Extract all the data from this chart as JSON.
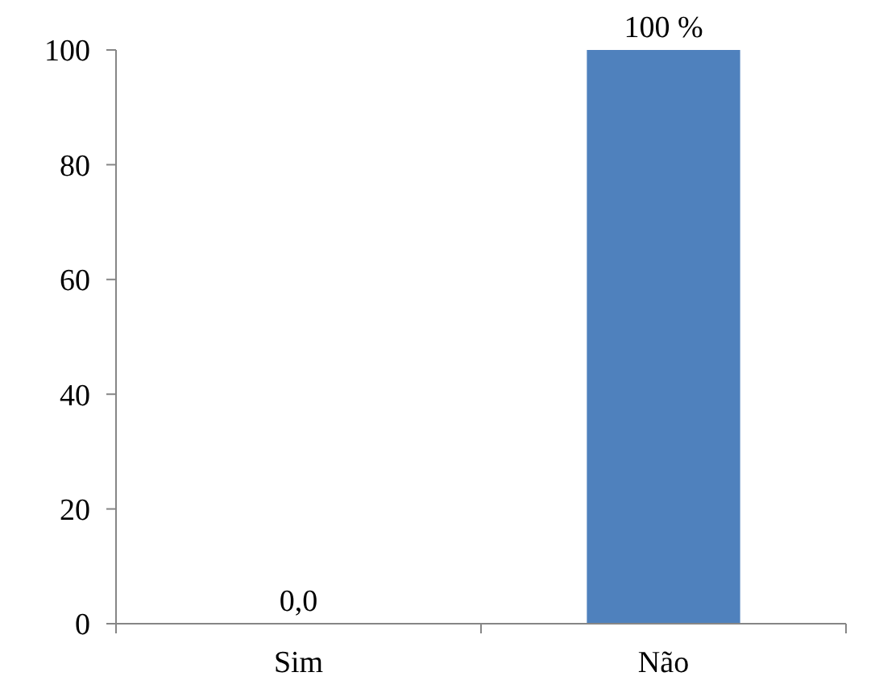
{
  "chart_data": {
    "type": "bar",
    "categories": [
      "Sim",
      "Não"
    ],
    "values": [
      0,
      100
    ],
    "color": "#4f81bd",
    "value_labels": [
      "0,0",
      "100 %"
    ],
    "ylim": [
      0,
      100
    ],
    "yticks": [
      0,
      20,
      40,
      60,
      80,
      100
    ],
    "grid": false
  }
}
